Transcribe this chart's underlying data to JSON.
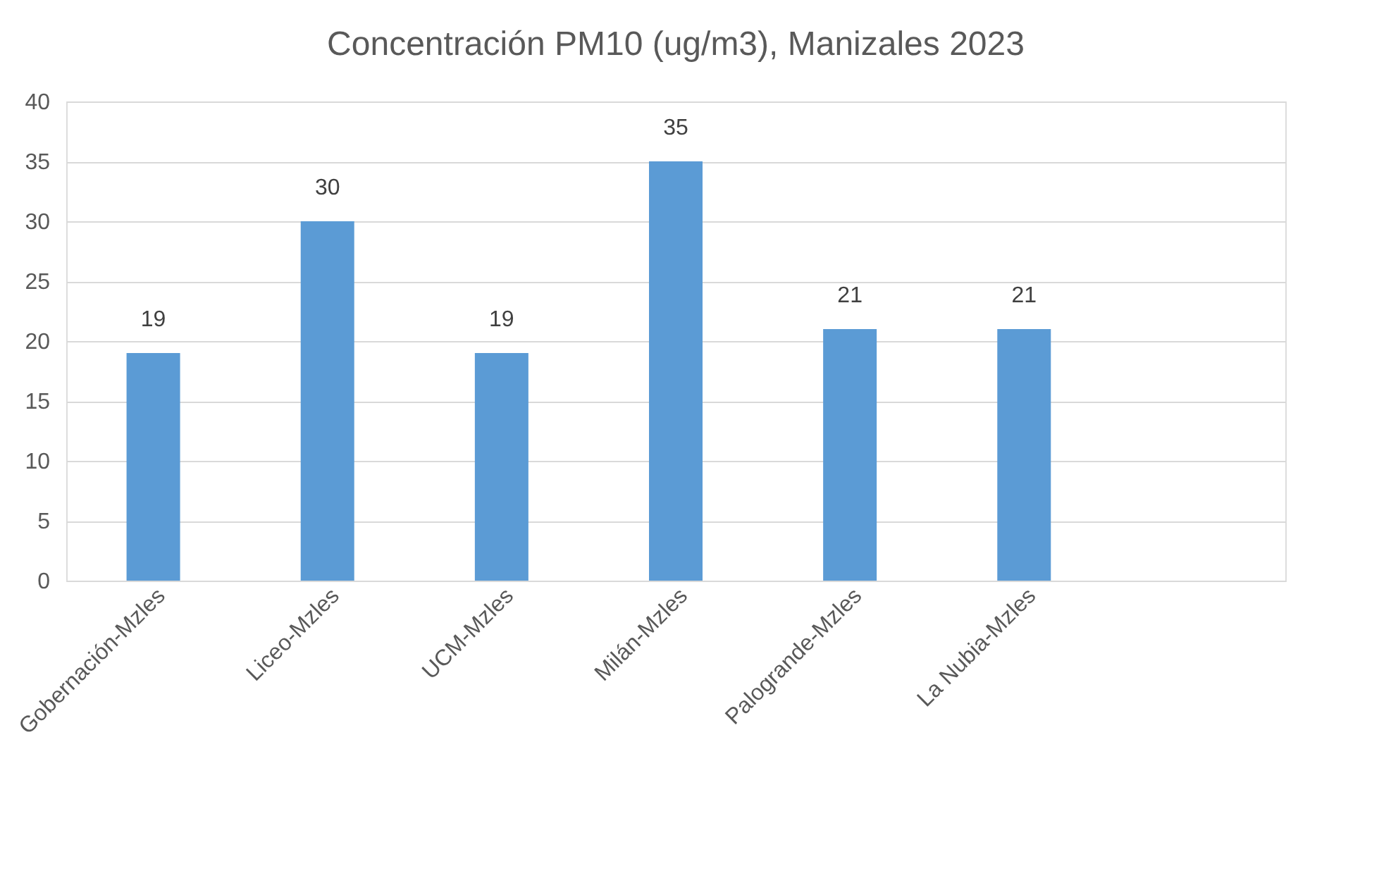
{
  "chart_data": {
    "type": "bar",
    "title": "Concentración PM10 (ug/m3), Manizales 2023",
    "categories": [
      "Gobernación-Mzles",
      "Liceo-Mzles",
      "UCM-Mzles",
      "Milán-Mzles",
      "Palogrande-Mzles",
      "La Nubia-Mzles",
      null
    ],
    "values": [
      19,
      30,
      19,
      35,
      21,
      21,
      null
    ],
    "color": "#5b9bd5",
    "ylim": [
      0,
      40
    ],
    "yticks": [
      0,
      5,
      10,
      15,
      20,
      25,
      30,
      35,
      40
    ],
    "grid": "y",
    "data_labels": true
  }
}
